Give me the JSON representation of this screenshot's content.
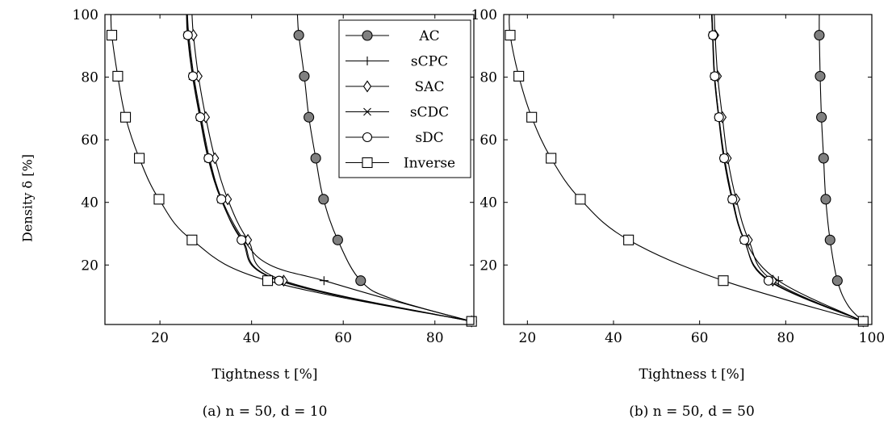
{
  "figure": {
    "ylabel": "Density δ [%]",
    "panels": [
      {
        "xlabel": "Tightness t [%]",
        "caption": "(a) n = 50, d = 10"
      },
      {
        "xlabel": "Tightness t [%]",
        "caption": "(b) n = 50, d = 50"
      }
    ]
  },
  "chart_data": [
    {
      "type": "line",
      "title": "(a) n = 50, d = 10",
      "xlabel": "Tightness t [%]",
      "ylabel": "Density δ [%]",
      "xlim": [
        8,
        88.5
      ],
      "ylim": [
        1,
        100
      ],
      "xticks": [
        20,
        40,
        60,
        80
      ],
      "yticks": [
        20,
        40,
        60,
        80,
        100
      ],
      "grid": false,
      "legend": "top-right",
      "legend_entries": [
        "AC",
        "sCPC",
        "SAC",
        "sCDC",
        "sDC",
        "Inverse"
      ],
      "series": [
        {
          "name": "AC",
          "marker": "filled-circle",
          "x": [
            50.3,
            51.5,
            52.5,
            54.0,
            55.7,
            58.8,
            63.8,
            88.0
          ],
          "y": [
            93.4,
            80.3,
            67.2,
            54.1,
            41.0,
            28.0,
            15.0,
            2.0
          ],
          "curve_x": [
            50.0,
            50.3,
            51.5,
            52.5,
            54.0,
            55.7,
            58.8,
            63.8,
            71.0,
            88.0
          ],
          "curve_y": [
            100,
            93.4,
            80.3,
            67.2,
            54.1,
            41.0,
            28.0,
            15.0,
            9.0,
            2.0
          ]
        },
        {
          "name": "sCPC",
          "marker": "plus",
          "x": [
            26.3,
            27.4,
            29.0,
            30.8,
            33.5,
            38.3,
            55.8,
            88.0
          ],
          "y": [
            93.4,
            80.3,
            67.2,
            54.1,
            41.0,
            28.0,
            15.0,
            2.0
          ],
          "curve_x": [
            26.0,
            26.3,
            27.4,
            29.0,
            30.8,
            33.5,
            38.3,
            44.0,
            55.8,
            70.0,
            88.0
          ],
          "curve_y": [
            100,
            93.4,
            80.3,
            67.2,
            54.1,
            41.0,
            28.0,
            20.0,
            15.0,
            9.0,
            2.0
          ]
        },
        {
          "name": "SAC",
          "marker": "diamond",
          "x": [
            27.3,
            28.4,
            30.0,
            32.0,
            34.8,
            39.2,
            47.0,
            88.0
          ],
          "y": [
            93.4,
            80.3,
            67.2,
            54.1,
            41.0,
            28.0,
            15.0,
            2.0
          ],
          "curve_x": [
            27.0,
            27.3,
            28.4,
            30.0,
            32.0,
            34.8,
            39.2,
            47.0,
            88.0
          ],
          "curve_y": [
            100,
            93.4,
            80.3,
            67.2,
            54.1,
            41.0,
            28.0,
            15.0,
            2.0
          ]
        },
        {
          "name": "sCDC",
          "marker": "cross",
          "x": [
            26.0,
            27.1,
            28.7,
            30.5,
            33.3,
            38.0,
            46.2,
            88.0
          ],
          "y": [
            93.4,
            80.3,
            67.2,
            54.1,
            41.0,
            28.0,
            15.0,
            2.0
          ],
          "curve_x": [
            25.8,
            26.0,
            27.1,
            28.7,
            30.5,
            33.3,
            38.0,
            46.2,
            88.0
          ],
          "curve_y": [
            100,
            93.4,
            80.3,
            67.2,
            54.1,
            41.0,
            28.0,
            15.0,
            2.0
          ]
        },
        {
          "name": "sDC",
          "marker": "circle",
          "x": [
            26.1,
            27.2,
            28.8,
            30.6,
            33.4,
            37.8,
            46.0,
            88.0
          ],
          "y": [
            93.4,
            80.3,
            67.2,
            54.1,
            41.0,
            28.0,
            15.0,
            2.0
          ],
          "curve_x": [
            25.9,
            26.1,
            27.2,
            28.8,
            30.6,
            33.4,
            37.8,
            46.0,
            88.0
          ],
          "curve_y": [
            100,
            93.4,
            80.3,
            67.2,
            54.1,
            41.0,
            28.0,
            15.0,
            2.0
          ]
        },
        {
          "name": "Inverse",
          "marker": "square",
          "x": [
            9.5,
            10.8,
            12.5,
            15.5,
            19.8,
            27.0,
            43.5,
            88.0
          ],
          "y": [
            93.4,
            80.3,
            67.2,
            54.1,
            41.0,
            28.0,
            15.0,
            2.0
          ],
          "curve_x": [
            9.3,
            9.5,
            10.8,
            12.5,
            15.5,
            19.8,
            27.0,
            43.5,
            88.0
          ],
          "curve_y": [
            100,
            93.4,
            80.3,
            67.2,
            54.1,
            41.0,
            28.0,
            15.0,
            2.0
          ]
        }
      ]
    },
    {
      "type": "line",
      "title": "(b) n = 50, d = 50",
      "xlabel": "Tightness t [%]",
      "ylabel": "Density δ [%]",
      "xlim": [
        14.5,
        100
      ],
      "ylim": [
        1,
        100
      ],
      "xticks": [
        20,
        40,
        60,
        80,
        100
      ],
      "yticks": [
        20,
        40,
        60,
        80,
        100
      ],
      "grid": false,
      "legend": "none",
      "series": [
        {
          "name": "AC",
          "marker": "filled-circle",
          "x": [
            87.8,
            88.0,
            88.3,
            88.8,
            89.3,
            90.3,
            92.0,
            98.0
          ],
          "y": [
            93.4,
            80.3,
            67.2,
            54.1,
            41.0,
            28.0,
            15.0,
            2.0
          ],
          "curve_x": [
            87.8,
            87.8,
            88.0,
            88.3,
            88.8,
            89.3,
            90.3,
            92.0,
            94.5,
            98.0
          ],
          "curve_y": [
            100,
            93.4,
            80.3,
            67.2,
            54.1,
            41.0,
            28.0,
            15.0,
            7.0,
            2.0
          ]
        },
        {
          "name": "sCPC",
          "marker": "plus",
          "x": [
            63.0,
            63.5,
            64.5,
            65.8,
            67.7,
            70.5,
            78.3,
            98.0
          ],
          "y": [
            93.4,
            80.3,
            67.2,
            54.1,
            41.0,
            28.0,
            15.0,
            2.0
          ],
          "curve_x": [
            62.8,
            63.0,
            63.5,
            64.5,
            65.8,
            67.7,
            70.5,
            78.3,
            98.0
          ],
          "curve_y": [
            100,
            93.4,
            80.3,
            67.2,
            54.1,
            41.0,
            28.0,
            15.0,
            2.0
          ]
        },
        {
          "name": "SAC",
          "marker": "diamond",
          "x": [
            63.6,
            64.2,
            65.3,
            66.5,
            68.5,
            71.4,
            77.0,
            98.0
          ],
          "y": [
            93.4,
            80.3,
            67.2,
            54.1,
            41.0,
            28.0,
            15.0,
            2.0
          ],
          "curve_x": [
            63.4,
            63.6,
            64.2,
            65.3,
            66.5,
            68.5,
            71.4,
            77.0,
            98.0
          ],
          "curve_y": [
            100,
            93.4,
            80.3,
            67.2,
            54.1,
            41.0,
            28.0,
            15.0,
            2.0
          ]
        },
        {
          "name": "sCDC",
          "marker": "cross",
          "x": [
            63.0,
            63.4,
            64.4,
            65.6,
            67.5,
            70.3,
            76.3,
            98.0
          ],
          "y": [
            93.4,
            80.3,
            67.2,
            54.1,
            41.0,
            28.0,
            15.0,
            2.0
          ],
          "curve_x": [
            62.8,
            63.0,
            63.4,
            64.4,
            65.6,
            67.5,
            70.3,
            76.3,
            98.0
          ],
          "curve_y": [
            100,
            93.4,
            80.3,
            67.2,
            54.1,
            41.0,
            28.0,
            15.0,
            2.0
          ]
        },
        {
          "name": "sDC",
          "marker": "circle",
          "x": [
            63.1,
            63.5,
            64.5,
            65.7,
            67.6,
            70.4,
            76.0,
            98.0
          ],
          "y": [
            93.4,
            80.3,
            67.2,
            54.1,
            41.0,
            28.0,
            15.0,
            2.0
          ],
          "curve_x": [
            62.9,
            63.1,
            63.5,
            64.5,
            65.7,
            67.6,
            70.4,
            76.0,
            98.0
          ],
          "curve_y": [
            100,
            93.4,
            80.3,
            67.2,
            54.1,
            41.0,
            28.0,
            15.0,
            2.0
          ]
        },
        {
          "name": "Inverse",
          "marker": "square",
          "x": [
            16.0,
            18.0,
            21.0,
            25.5,
            32.3,
            43.5,
            65.5,
            98.0
          ],
          "y": [
            93.4,
            80.3,
            67.2,
            54.1,
            41.0,
            28.0,
            15.0,
            2.0
          ],
          "curve_x": [
            15.8,
            16.0,
            18.0,
            21.0,
            25.5,
            32.3,
            43.5,
            65.5,
            98.0
          ],
          "curve_y": [
            100,
            93.4,
            80.3,
            67.2,
            54.1,
            41.0,
            28.0,
            15.0,
            2.0
          ]
        }
      ]
    }
  ]
}
